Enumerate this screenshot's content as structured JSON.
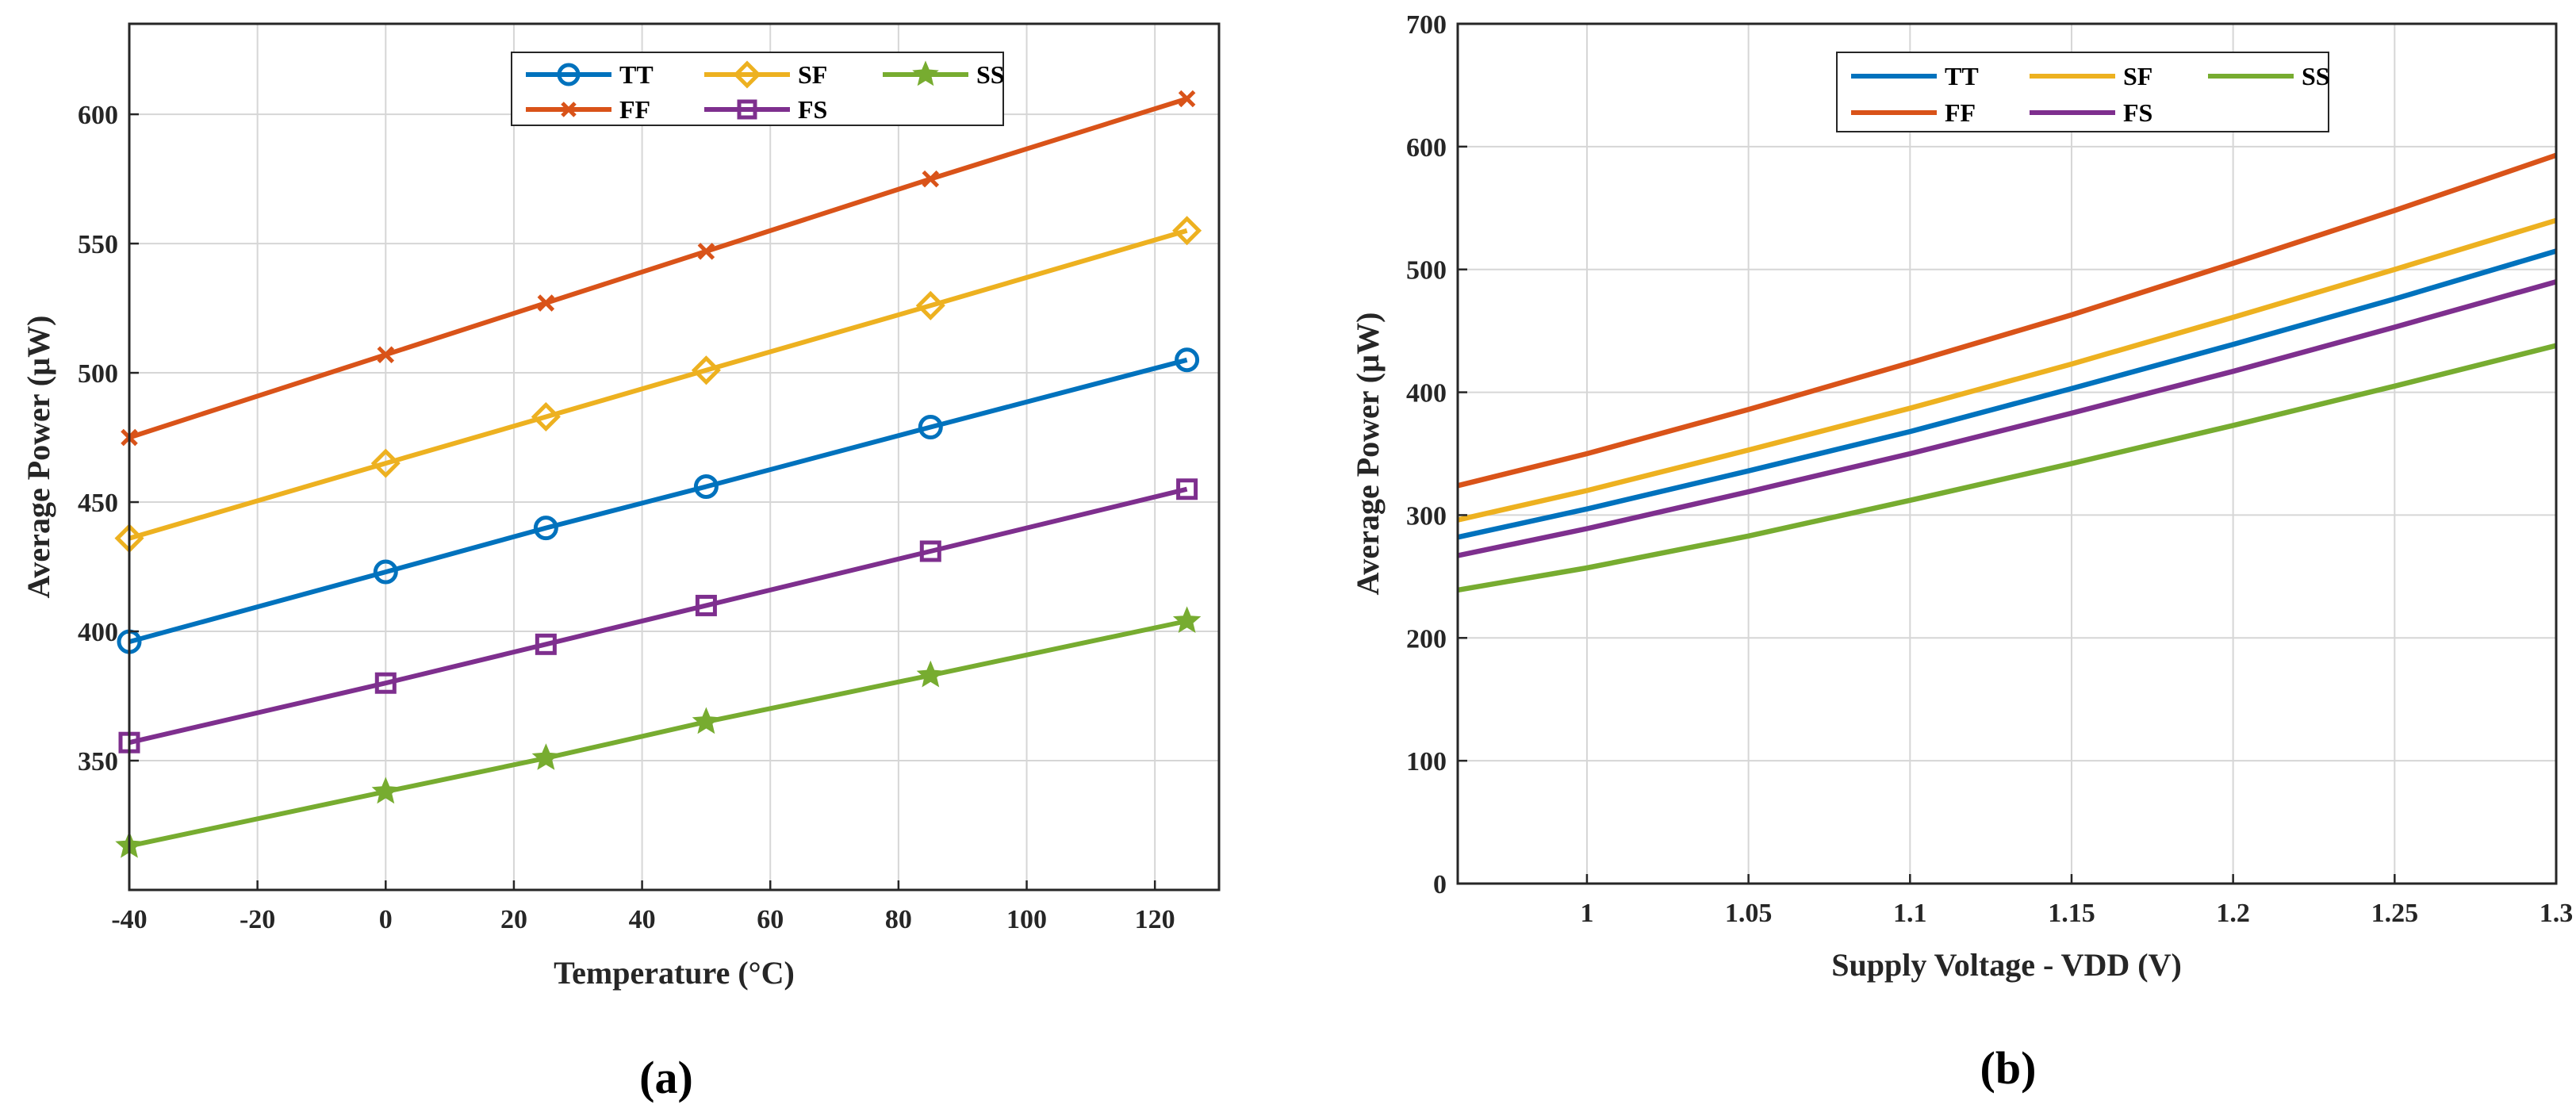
{
  "chart_data": [
    {
      "type": "line",
      "panel_label": "(a)",
      "xlabel": "Temperature (°C)",
      "ylabel": "Average Power (µW)",
      "xlim": [
        -40,
        130
      ],
      "ylim": [
        300,
        635
      ],
      "x_ticks": [
        -40,
        -20,
        0,
        20,
        40,
        60,
        80,
        100,
        120
      ],
      "y_ticks": [
        350,
        400,
        450,
        500,
        550,
        600
      ],
      "x_tick_labels": [
        "-40",
        "-20",
        "0",
        "20",
        "40",
        "60",
        "80",
        "100",
        "120"
      ],
      "y_tick_labels": [
        "350",
        "400",
        "450",
        "500",
        "550",
        "600"
      ],
      "grid": true,
      "legend_position": "top-center",
      "x": [
        -40,
        0,
        25,
        50,
        85,
        125
      ],
      "series": [
        {
          "name": "TT",
          "color": "#0072BD",
          "marker": "circle",
          "values": [
            396,
            423,
            440,
            456,
            479,
            505
          ]
        },
        {
          "name": "SF",
          "color": "#EDB120",
          "marker": "diamond",
          "values": [
            436,
            465,
            483,
            501,
            526,
            555
          ]
        },
        {
          "name": "SS",
          "color": "#77AC30",
          "marker": "star",
          "values": [
            317,
            338,
            351,
            365,
            383,
            404
          ]
        },
        {
          "name": "FF",
          "color": "#D95319",
          "marker": "x",
          "values": [
            475,
            507,
            527,
            547,
            575,
            606
          ]
        },
        {
          "name": "FS",
          "color": "#7E2F8E",
          "marker": "square",
          "values": [
            357,
            380,
            395,
            410,
            431,
            455
          ]
        }
      ]
    },
    {
      "type": "line",
      "panel_label": "(b)",
      "xlabel": "Supply Voltage - VDD (V)",
      "ylabel": "Average Power  (µW)",
      "xlim": [
        0.96,
        1.3
      ],
      "ylim": [
        0,
        700
      ],
      "x_ticks": [
        1,
        1.05,
        1.1,
        1.15,
        1.2,
        1.25,
        1.3
      ],
      "y_ticks": [
        0,
        100,
        200,
        300,
        400,
        500,
        600,
        700
      ],
      "x_tick_labels": [
        "1",
        "1.05",
        "1.1",
        "1.15",
        "1.2",
        "1.25",
        "1.3"
      ],
      "y_tick_labels": [
        "0",
        "100",
        "200",
        "300",
        "400",
        "500",
        "600",
        "700"
      ],
      "grid": true,
      "legend_position": "top-left",
      "x": [
        0.96,
        1.0,
        1.05,
        1.1,
        1.15,
        1.2,
        1.25,
        1.3
      ],
      "series": [
        {
          "name": "TT",
          "color": "#0072BD",
          "values": [
            282,
            305,
            336,
            368,
            403,
            439,
            476,
            515
          ]
        },
        {
          "name": "SF",
          "color": "#EDB120",
          "values": [
            296,
            320,
            353,
            387,
            423,
            461,
            500,
            540
          ]
        },
        {
          "name": "SS",
          "color": "#77AC30",
          "values": [
            239,
            257,
            283,
            312,
            342,
            373,
            405,
            438
          ]
        },
        {
          "name": "FF",
          "color": "#D95319",
          "values": [
            324,
            350,
            386,
            424,
            463,
            505,
            548,
            593
          ]
        },
        {
          "name": "FS",
          "color": "#7E2F8E",
          "values": [
            267,
            289,
            319,
            350,
            383,
            417,
            453,
            490
          ]
        }
      ]
    }
  ]
}
